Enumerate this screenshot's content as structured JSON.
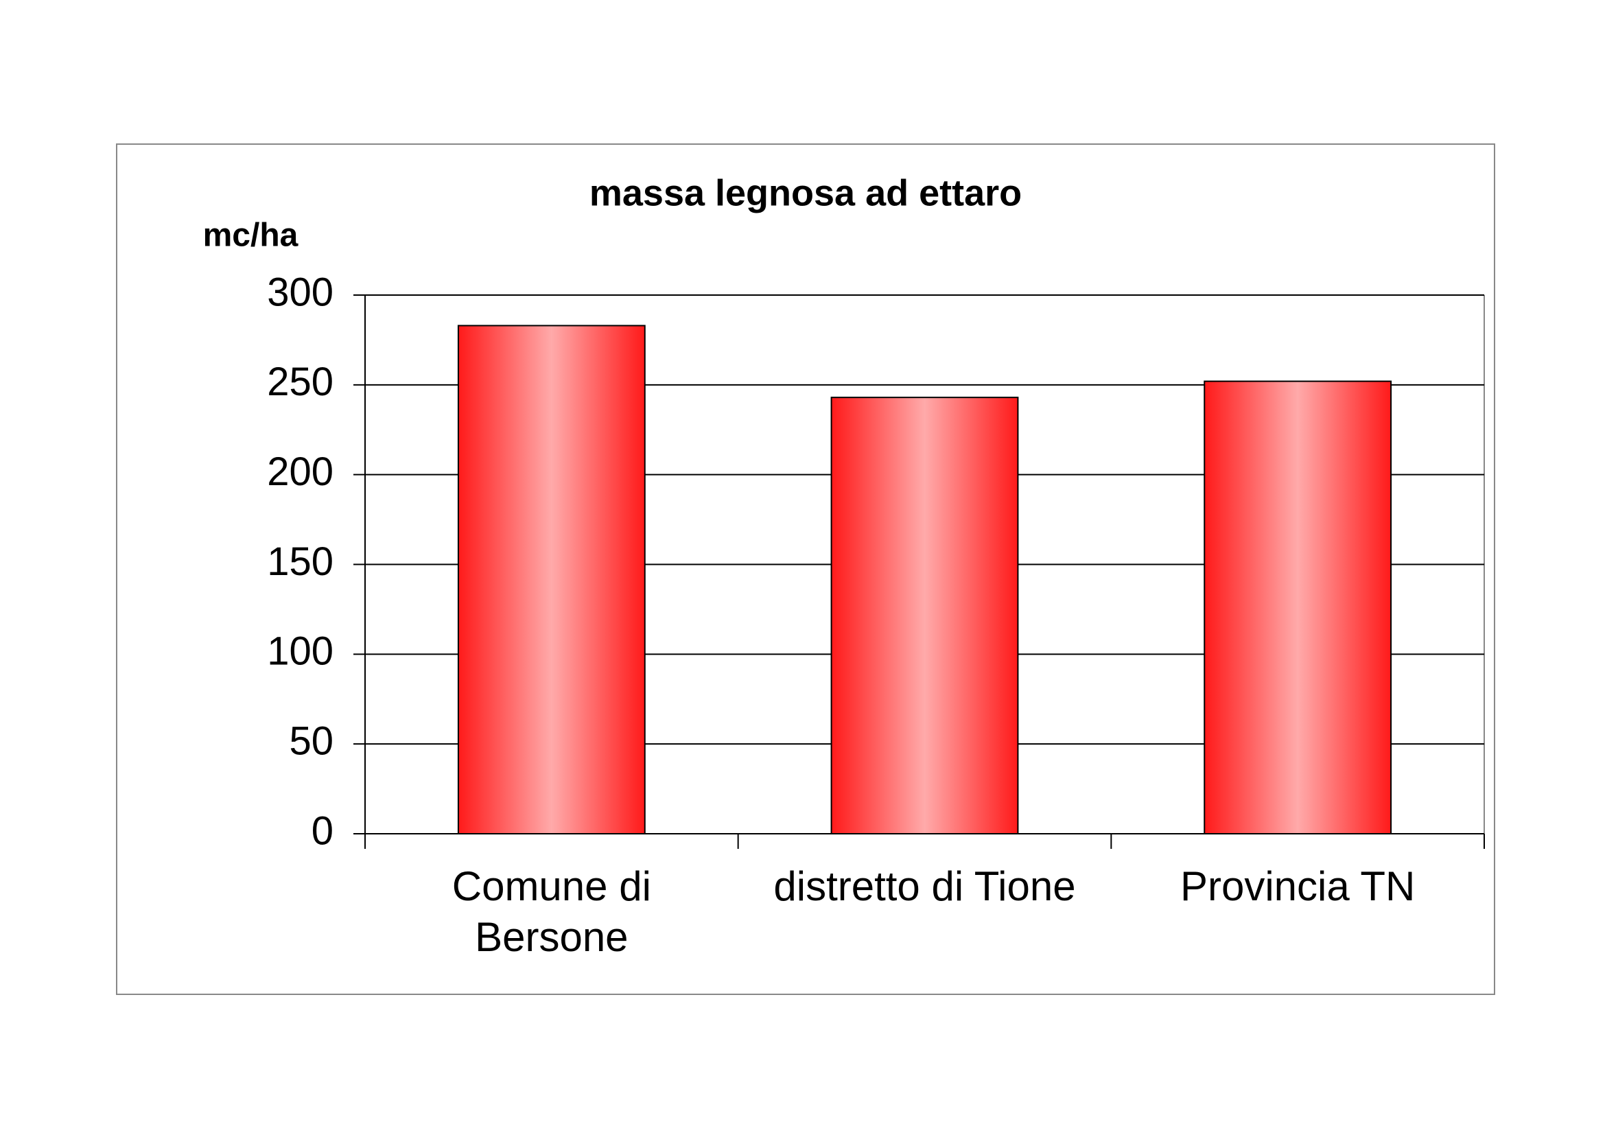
{
  "chart_data": {
    "type": "bar",
    "title": "massa legnosa ad ettaro",
    "y_label": "mc/ha",
    "categories": [
      "Comune di Bersone",
      "distretto di Tione",
      "Provincia TN"
    ],
    "values": [
      283,
      243,
      252
    ],
    "color": "#ff1a1a",
    "ylim": [
      0,
      300
    ],
    "yticks": [
      0,
      50,
      100,
      150,
      200,
      250,
      300
    ],
    "grid": true
  }
}
